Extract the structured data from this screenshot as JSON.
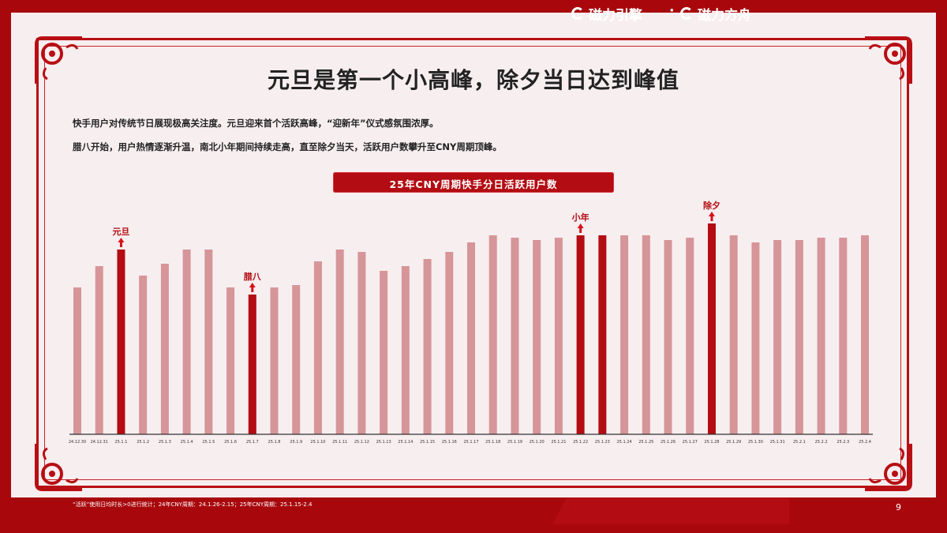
{
  "title": "元旦是第一个小高峰，除夕当日达到峰值",
  "description": [
    "快手用户对传统节日展现极高关注度。元旦迎来首个活跃高峰，“迎新年”仪式感氛围浓厚。",
    "腊八开始，用户热情逐渐升温，南北小年期间持续走高，直至除夕当天，活跃用户数攀升至CNY周期顶峰。"
  ],
  "footnote": "“活跃”使用日均时长>0进行统计；24年CNY周期：24.1.26-2.15；25年CNY周期：25.1.15-2.4",
  "brands": [
    "磁力引擎",
    "磁力方舟"
  ],
  "brand_separator": "·",
  "page_number": "9",
  "colors": {
    "background": "#a8080c",
    "panel": "#f7eef0",
    "bar_normal": "#d69598",
    "bar_highlight": "#b30c12"
  },
  "chart_data": {
    "type": "bar",
    "title": "25年CNY周期快手分日活跃用户数",
    "categories": [
      "24.12.30",
      "24.12.31",
      "25.1.1",
      "25.1.2",
      "25.1.3",
      "25.1.4",
      "25.1.5",
      "25.1.6",
      "25.1.7",
      "25.1.8",
      "25.1.9",
      "25.1.10",
      "25.1.11",
      "25.1.12",
      "25.1.13",
      "25.1.14",
      "25.1.15",
      "25.1.16",
      "25.1.17",
      "25.1.18",
      "25.1.19",
      "25.1.20",
      "25.1.21",
      "25.1.22",
      "25.1.23",
      "25.1.24",
      "25.1.25",
      "25.1.26",
      "25.1.27",
      "25.1.28",
      "25.1.29",
      "25.1.30",
      "25.1.31",
      "25.2.1",
      "25.2.2",
      "25.2.3",
      "25.2.4"
    ],
    "values": [
      62,
      71,
      78,
      67,
      72,
      78,
      78,
      62,
      59,
      62,
      63,
      73,
      78,
      77,
      69,
      71,
      74,
      77,
      81,
      84,
      83,
      82,
      83,
      84,
      84,
      84,
      84,
      82,
      83,
      89,
      84,
      81,
      82,
      82,
      83,
      83,
      84
    ],
    "highlight": [
      false,
      false,
      true,
      false,
      false,
      false,
      false,
      false,
      true,
      false,
      false,
      false,
      false,
      false,
      false,
      false,
      false,
      false,
      false,
      false,
      false,
      false,
      false,
      true,
      true,
      false,
      false,
      false,
      false,
      true,
      false,
      false,
      false,
      false,
      false,
      false,
      false
    ],
    "annotations": [
      {
        "index": 2,
        "label": "元旦"
      },
      {
        "index": 8,
        "label": "腊八"
      },
      {
        "index": 23,
        "label": "小年"
      },
      {
        "index": 29,
        "label": "除夕"
      }
    ],
    "ylim": [
      0,
      100
    ]
  }
}
